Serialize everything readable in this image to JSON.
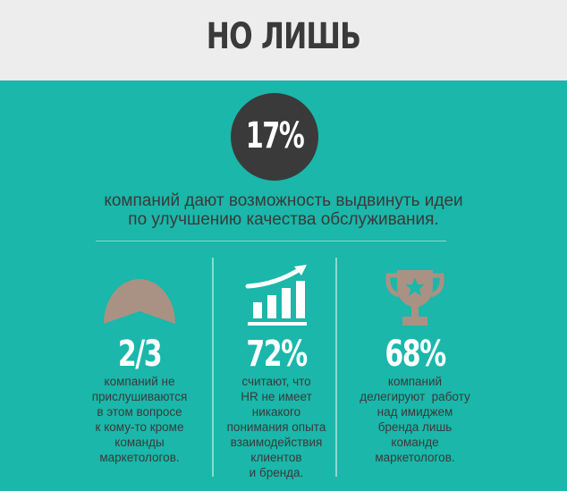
{
  "header": {
    "title": "НО ЛИШЬ"
  },
  "highlight": {
    "value": "17%",
    "text_lines": [
      "компаний дают возможность выдвинуть идеи",
      "по улучшению качества обслуживания."
    ]
  },
  "stats": [
    {
      "icon": "semicircle-icon",
      "value": "2/3",
      "lines": [
        "компаний не",
        "прислушиваются",
        "в этом вопросе",
        "к кому-то кроме",
        "команды",
        "маркетологов."
      ]
    },
    {
      "icon": "bar-chart-icon",
      "value": "72%",
      "lines": [
        "считают, что",
        "HR не имеет",
        "никакого",
        "понимания опыта",
        "взаимодействия",
        "клиентов",
        "и бренда."
      ]
    },
    {
      "icon": "trophy-icon",
      "value": "68%",
      "lines": [
        "компаний",
        "делегируют  работу",
        "над имиджем",
        "бренда лишь",
        "команде",
        "маркетологов."
      ]
    }
  ],
  "colors": {
    "teal": "#1ab7aa",
    "header_bg": "#ededed",
    "dark": "#3a3a3a",
    "icon_tan": "#a99283",
    "white": "#ffffff"
  }
}
